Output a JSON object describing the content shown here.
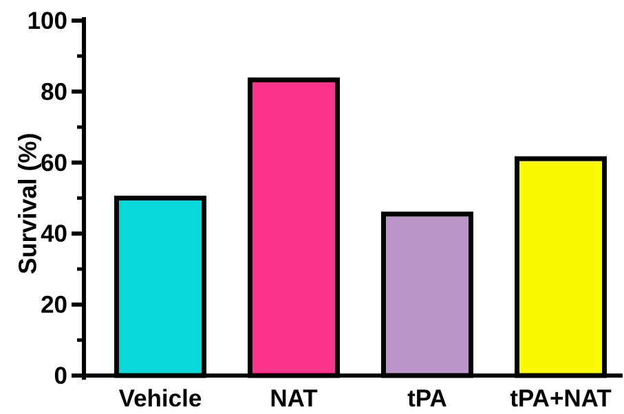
{
  "chart_data": {
    "type": "bar",
    "title": "",
    "xlabel": "",
    "ylabel": "Survival (%)",
    "ylim": [
      0,
      100
    ],
    "yticks": [
      "0",
      "20",
      "40",
      "60",
      "80",
      "100"
    ],
    "grid": false,
    "categories": [
      "Vehicle",
      "NAT",
      "tPA",
      "tPA+NAT"
    ],
    "values": [
      50,
      83.3,
      45.5,
      61.1
    ],
    "colors": [
      "#08D8D8",
      "#FC348B",
      "#BC95C9",
      "#FBF900"
    ],
    "bar_outline_color": "#000000"
  }
}
